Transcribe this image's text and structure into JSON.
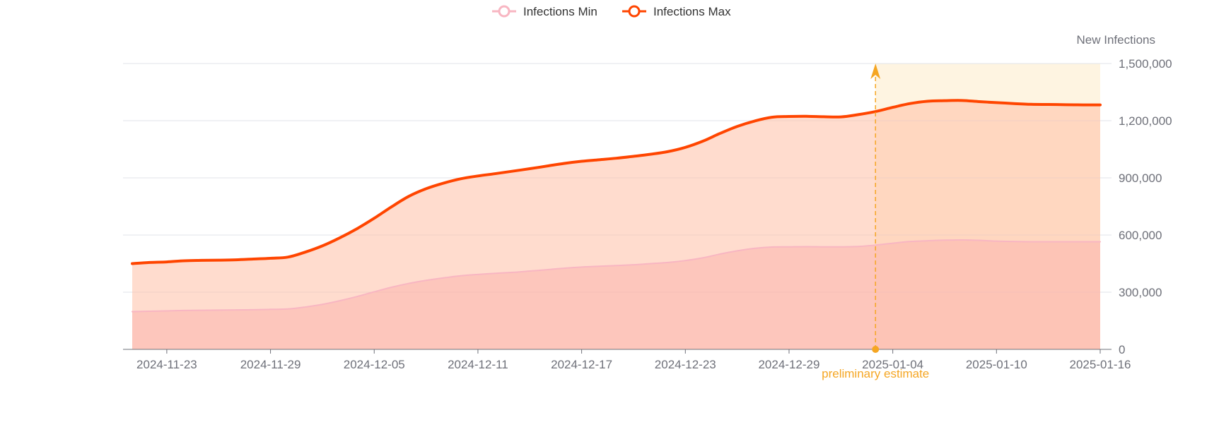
{
  "chart_data": {
    "type": "area",
    "x_dates": [
      "2024-11-21",
      "2024-11-22",
      "2024-11-23",
      "2024-11-24",
      "2024-11-25",
      "2024-11-26",
      "2024-11-27",
      "2024-11-28",
      "2024-11-29",
      "2024-11-30",
      "2024-12-01",
      "2024-12-02",
      "2024-12-03",
      "2024-12-04",
      "2024-12-05",
      "2024-12-06",
      "2024-12-07",
      "2024-12-08",
      "2024-12-09",
      "2024-12-10",
      "2024-12-11",
      "2024-12-12",
      "2024-12-13",
      "2024-12-14",
      "2024-12-15",
      "2024-12-16",
      "2024-12-17",
      "2024-12-18",
      "2024-12-19",
      "2024-12-20",
      "2024-12-21",
      "2024-12-22",
      "2024-12-23",
      "2024-12-24",
      "2024-12-25",
      "2024-12-26",
      "2024-12-27",
      "2024-12-28",
      "2024-12-29",
      "2024-12-30",
      "2024-12-31",
      "2025-01-01",
      "2025-01-02",
      "2025-01-03",
      "2025-01-04",
      "2025-01-05",
      "2025-01-06",
      "2025-01-07",
      "2025-01-08",
      "2025-01-09",
      "2025-01-10",
      "2025-01-11",
      "2025-01-12",
      "2025-01-13",
      "2025-01-14",
      "2025-01-15",
      "2025-01-16"
    ],
    "series": [
      {
        "name": "Infections Min",
        "color": "#f8b6c2",
        "values": [
          198000,
          200000,
          202000,
          204000,
          205000,
          206000,
          207000,
          208000,
          210000,
          212000,
          222000,
          236000,
          255000,
          277000,
          302000,
          326000,
          346000,
          362000,
          375000,
          386000,
          393000,
          399000,
          404000,
          411000,
          418000,
          426000,
          432000,
          436000,
          440000,
          444000,
          450000,
          456000,
          466000,
          480000,
          500000,
          517000,
          530000,
          537000,
          538000,
          539000,
          538000,
          538000,
          540000,
          547000,
          557000,
          566000,
          570000,
          573000,
          574000,
          572000,
          568000,
          566000,
          565000,
          565000,
          565000,
          565000,
          565000
        ]
      },
      {
        "name": "Infections Max",
        "color": "#ff4500",
        "values": [
          450000,
          456000,
          459000,
          465000,
          467000,
          468000,
          470000,
          474000,
          478000,
          484000,
          510000,
          543000,
          585000,
          633000,
          688000,
          748000,
          803000,
          843000,
          872000,
          895000,
          910000,
          922000,
          935000,
          948000,
          962000,
          976000,
          987000,
          995000,
          1003000,
          1013000,
          1024000,
          1038000,
          1060000,
          1092000,
          1133000,
          1170000,
          1198000,
          1218000,
          1222000,
          1223000,
          1221000,
          1220000,
          1232000,
          1248000,
          1270000,
          1290000,
          1302000,
          1305000,
          1306000,
          1300000,
          1295000,
          1290000,
          1286000,
          1285000,
          1284000,
          1283000,
          1283000
        ]
      }
    ],
    "x_tick_labels": [
      "2024-11-23",
      "2024-11-29",
      "2024-12-05",
      "2024-12-11",
      "2024-12-17",
      "2024-12-23",
      "2024-12-29",
      "2025-01-04",
      "2025-01-10",
      "2025-01-16"
    ],
    "y_ticks": [
      0,
      300000,
      600000,
      900000,
      1200000,
      1500000
    ],
    "y_tick_labels": [
      "0",
      "300,000",
      "600,000",
      "900,000",
      "1,200,000",
      "1,500,000"
    ],
    "ylabel": "New Infections",
    "ylim": [
      0,
      1500000
    ],
    "y_axis_side": "right",
    "grid": true,
    "legend_position": "top-center",
    "mark_line": {
      "date": "2025-01-03",
      "label": "preliminary estimate",
      "color": "#f5a623"
    },
    "mark_area": {
      "from": "2025-01-03",
      "to": "2025-01-16",
      "color": "#fdebc8"
    }
  }
}
